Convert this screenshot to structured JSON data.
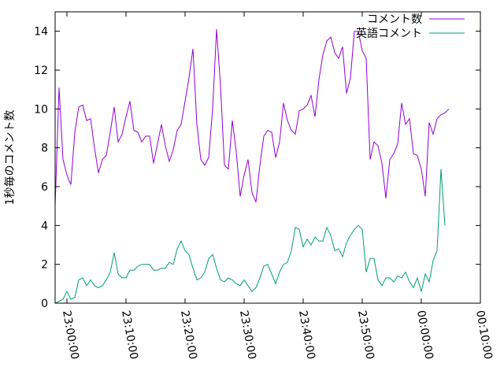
{
  "chart_data": {
    "type": "line",
    "title": "",
    "xlabel": "",
    "ylabel": "1秒毎のコメント数",
    "ylim": [
      0,
      15
    ],
    "yticks": [
      0,
      2,
      4,
      6,
      8,
      10,
      12,
      14
    ],
    "xlim": [
      "22:58:00",
      "00:10:00"
    ],
    "xticks": [
      "23:00:00",
      "23:10:00",
      "23:20:00",
      "23:30:00",
      "23:40:00",
      "23:50:00",
      "00:00:00",
      "00:10:00"
    ],
    "grid": false,
    "legend_position": "top-right",
    "series": [
      {
        "name": "コメント数",
        "color": "#9400d3",
        "points": [
          [
            "22:58:00",
            5.0
          ],
          [
            "22:58:40",
            11.1
          ],
          [
            "22:59:20",
            7.4
          ],
          [
            "23:00:00",
            6.6
          ],
          [
            "23:00:40",
            6.1
          ],
          [
            "23:01:20",
            8.8
          ],
          [
            "23:02:00",
            10.1
          ],
          [
            "23:02:40",
            10.2
          ],
          [
            "23:03:20",
            9.4
          ],
          [
            "23:04:00",
            9.5
          ],
          [
            "23:04:40",
            8.0
          ],
          [
            "23:05:20",
            6.7
          ],
          [
            "23:06:00",
            7.4
          ],
          [
            "23:06:40",
            7.6
          ],
          [
            "23:07:20",
            8.8
          ],
          [
            "23:08:00",
            10.1
          ],
          [
            "23:08:40",
            8.3
          ],
          [
            "23:09:20",
            8.7
          ],
          [
            "23:10:00",
            9.6
          ],
          [
            "23:10:40",
            10.4
          ],
          [
            "23:11:20",
            8.9
          ],
          [
            "23:12:00",
            8.8
          ],
          [
            "23:12:40",
            8.3
          ],
          [
            "23:13:20",
            8.6
          ],
          [
            "23:14:00",
            8.6
          ],
          [
            "23:14:40",
            7.2
          ],
          [
            "23:15:20",
            8.2
          ],
          [
            "23:16:00",
            9.2
          ],
          [
            "23:16:40",
            8.1
          ],
          [
            "23:17:20",
            7.3
          ],
          [
            "23:18:00",
            7.9
          ],
          [
            "23:18:40",
            8.9
          ],
          [
            "23:19:20",
            9.2
          ],
          [
            "23:20:00",
            10.4
          ],
          [
            "23:20:40",
            11.6
          ],
          [
            "23:21:20",
            13.1
          ],
          [
            "23:22:00",
            9.2
          ],
          [
            "23:22:40",
            7.4
          ],
          [
            "23:23:20",
            7.1
          ],
          [
            "23:24:00",
            7.5
          ],
          [
            "23:24:40",
            10.0
          ],
          [
            "23:25:20",
            14.1
          ],
          [
            "23:26:00",
            11.2
          ],
          [
            "23:26:40",
            7.1
          ],
          [
            "23:27:20",
            6.9
          ],
          [
            "23:28:00",
            9.4
          ],
          [
            "23:28:40",
            7.8
          ],
          [
            "23:29:20",
            5.5
          ],
          [
            "23:30:00",
            6.6
          ],
          [
            "23:30:40",
            7.4
          ],
          [
            "23:31:20",
            5.7
          ],
          [
            "23:32:00",
            5.2
          ],
          [
            "23:32:40",
            7.1
          ],
          [
            "23:33:20",
            8.6
          ],
          [
            "23:34:00",
            8.9
          ],
          [
            "23:34:40",
            8.8
          ],
          [
            "23:35:20",
            7.5
          ],
          [
            "23:36:00",
            8.3
          ],
          [
            "23:36:40",
            10.3
          ],
          [
            "23:37:20",
            9.4
          ],
          [
            "23:38:00",
            8.9
          ],
          [
            "23:38:40",
            8.7
          ],
          [
            "23:39:20",
            9.9
          ],
          [
            "23:40:00",
            10.0
          ],
          [
            "23:40:40",
            10.2
          ],
          [
            "23:41:20",
            10.7
          ],
          [
            "23:42:00",
            9.6
          ],
          [
            "23:42:40",
            11.5
          ],
          [
            "23:43:20",
            12.8
          ],
          [
            "23:44:00",
            13.5
          ],
          [
            "23:44:40",
            13.7
          ],
          [
            "23:45:20",
            12.9
          ],
          [
            "23:46:00",
            12.6
          ],
          [
            "23:46:40",
            13.2
          ],
          [
            "23:47:20",
            10.8
          ],
          [
            "23:48:00",
            11.6
          ],
          [
            "23:48:40",
            14.0
          ],
          [
            "23:49:20",
            14.0
          ],
          [
            "23:50:00",
            13.0
          ],
          [
            "23:50:40",
            12.6
          ],
          [
            "23:51:20",
            7.4
          ],
          [
            "23:52:00",
            8.3
          ],
          [
            "23:52:40",
            8.1
          ],
          [
            "23:53:20",
            7.2
          ],
          [
            "23:54:00",
            5.4
          ],
          [
            "23:54:40",
            7.4
          ],
          [
            "23:55:20",
            7.7
          ],
          [
            "23:56:00",
            8.2
          ],
          [
            "23:56:40",
            10.3
          ],
          [
            "23:57:20",
            9.2
          ],
          [
            "23:58:00",
            9.5
          ],
          [
            "23:58:40",
            7.7
          ],
          [
            "23:59:20",
            7.6
          ],
          [
            "00:00:00",
            6.9
          ],
          [
            "00:00:40",
            5.5
          ],
          [
            "00:01:20",
            9.3
          ],
          [
            "00:02:00",
            8.7
          ],
          [
            "00:02:40",
            9.5
          ],
          [
            "00:03:20",
            9.7
          ],
          [
            "00:04:00",
            9.8
          ],
          [
            "00:04:40",
            10.0
          ]
        ]
      },
      {
        "name": "英語コメント",
        "color": "#009e73",
        "points": [
          [
            "22:58:00",
            0.0
          ],
          [
            "22:58:40",
            0.1
          ],
          [
            "22:59:20",
            0.2
          ],
          [
            "23:00:00",
            0.6
          ],
          [
            "23:00:40",
            0.2
          ],
          [
            "23:01:20",
            0.3
          ],
          [
            "23:02:00",
            1.2
          ],
          [
            "23:02:40",
            1.3
          ],
          [
            "23:03:20",
            0.9
          ],
          [
            "23:04:00",
            1.2
          ],
          [
            "23:04:40",
            0.9
          ],
          [
            "23:05:20",
            0.8
          ],
          [
            "23:06:00",
            0.9
          ],
          [
            "23:06:40",
            1.2
          ],
          [
            "23:07:20",
            1.6
          ],
          [
            "23:08:00",
            2.6
          ],
          [
            "23:08:40",
            1.5
          ],
          [
            "23:09:20",
            1.3
          ],
          [
            "23:10:00",
            1.3
          ],
          [
            "23:10:40",
            1.7
          ],
          [
            "23:11:20",
            1.7
          ],
          [
            "23:12:00",
            1.9
          ],
          [
            "23:12:40",
            2.0
          ],
          [
            "23:13:20",
            2.0
          ],
          [
            "23:14:00",
            2.0
          ],
          [
            "23:14:40",
            1.7
          ],
          [
            "23:15:20",
            1.7
          ],
          [
            "23:16:00",
            1.8
          ],
          [
            "23:16:40",
            1.8
          ],
          [
            "23:17:20",
            2.1
          ],
          [
            "23:18:00",
            2.0
          ],
          [
            "23:18:40",
            2.8
          ],
          [
            "23:19:20",
            3.2
          ],
          [
            "23:20:00",
            2.7
          ],
          [
            "23:20:40",
            2.5
          ],
          [
            "23:21:20",
            1.8
          ],
          [
            "23:22:00",
            1.2
          ],
          [
            "23:22:40",
            1.3
          ],
          [
            "23:23:20",
            1.6
          ],
          [
            "23:24:00",
            2.3
          ],
          [
            "23:24:40",
            2.5
          ],
          [
            "23:25:20",
            1.8
          ],
          [
            "23:26:00",
            1.2
          ],
          [
            "23:26:40",
            1.1
          ],
          [
            "23:27:20",
            1.3
          ],
          [
            "23:28:00",
            1.2
          ],
          [
            "23:28:40",
            1.0
          ],
          [
            "23:29:20",
            0.9
          ],
          [
            "23:30:00",
            1.2
          ],
          [
            "23:30:40",
            0.9
          ],
          [
            "23:31:20",
            0.6
          ],
          [
            "23:32:00",
            0.8
          ],
          [
            "23:32:40",
            1.3
          ],
          [
            "23:33:20",
            1.9
          ],
          [
            "23:34:00",
            2.0
          ],
          [
            "23:34:40",
            1.5
          ],
          [
            "23:35:20",
            1.0
          ],
          [
            "23:36:00",
            1.6
          ],
          [
            "23:36:40",
            2.0
          ],
          [
            "23:37:20",
            2.1
          ],
          [
            "23:38:00",
            2.7
          ],
          [
            "23:38:40",
            3.9
          ],
          [
            "23:39:20",
            3.8
          ],
          [
            "23:40:00",
            2.9
          ],
          [
            "23:40:40",
            3.3
          ],
          [
            "23:41:20",
            3.0
          ],
          [
            "23:42:00",
            3.4
          ],
          [
            "23:42:40",
            3.2
          ],
          [
            "23:43:20",
            3.2
          ],
          [
            "23:44:00",
            3.9
          ],
          [
            "23:44:40",
            3.5
          ],
          [
            "23:45:20",
            2.7
          ],
          [
            "23:46:00",
            2.8
          ],
          [
            "23:46:40",
            2.4
          ],
          [
            "23:47:20",
            3.1
          ],
          [
            "23:48:00",
            3.5
          ],
          [
            "23:48:40",
            3.8
          ],
          [
            "23:49:20",
            4.0
          ],
          [
            "23:50:00",
            3.8
          ],
          [
            "23:50:40",
            1.6
          ],
          [
            "23:51:20",
            2.3
          ],
          [
            "23:52:00",
            2.3
          ],
          [
            "23:52:40",
            1.2
          ],
          [
            "23:53:20",
            0.9
          ],
          [
            "23:54:00",
            1.3
          ],
          [
            "23:54:40",
            1.3
          ],
          [
            "23:55:20",
            1.1
          ],
          [
            "23:56:00",
            1.4
          ],
          [
            "23:56:40",
            1.3
          ],
          [
            "23:57:20",
            1.6
          ],
          [
            "23:58:00",
            1.1
          ],
          [
            "23:58:40",
            0.8
          ],
          [
            "23:59:20",
            1.3
          ],
          [
            "00:00:00",
            0.6
          ],
          [
            "00:00:40",
            1.5
          ],
          [
            "00:01:20",
            1.1
          ],
          [
            "00:02:00",
            2.2
          ],
          [
            "00:02:40",
            2.7
          ],
          [
            "00:03:20",
            6.9
          ],
          [
            "00:04:00",
            4.0
          ]
        ]
      }
    ]
  }
}
